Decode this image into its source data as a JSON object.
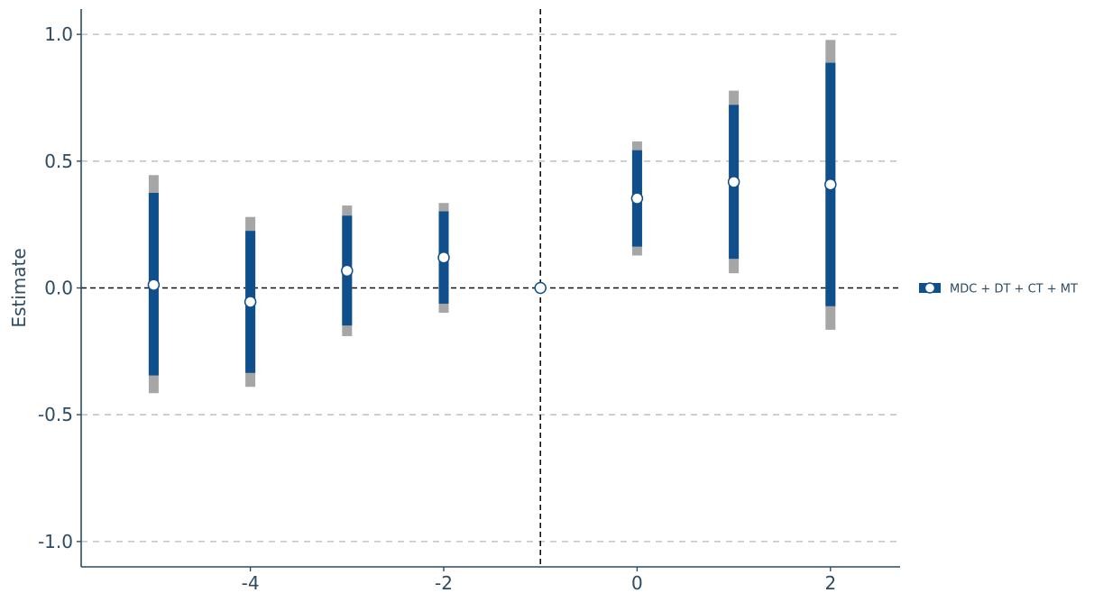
{
  "chart_data": {
    "type": "scatter",
    "title": "",
    "xlabel": "",
    "ylabel": "Estimate",
    "xlim": [
      -5.75,
      2.72
    ],
    "ylim": [
      -1.1,
      1.1
    ],
    "x_ticks": [
      -4,
      -2,
      0,
      2
    ],
    "x_tick_labels": [
      "-4",
      "-2",
      "0",
      "2"
    ],
    "y_ticks": [
      -1.0,
      -0.5,
      0.0,
      0.5,
      1.0
    ],
    "y_tick_labels": [
      "-1.0",
      "-0.5",
      "0.0",
      "0.5",
      "1.0"
    ],
    "grid": "horizontal dashed",
    "reference_lines": {
      "y": 0,
      "x": -1
    },
    "legend_position": "right",
    "series": [
      {
        "name": "MDC + DT + CT + MT",
        "color": "#0f4f8c",
        "outer_ci_color": "#a6a6a6",
        "points": [
          {
            "x": -5,
            "estimate": 0.012,
            "ci_inner": [
              -0.345,
              0.375
            ],
            "ci_outer": [
              -0.415,
              0.445
            ]
          },
          {
            "x": -4,
            "estimate": -0.055,
            "ci_inner": [
              -0.335,
              0.225
            ],
            "ci_outer": [
              -0.39,
              0.28
            ]
          },
          {
            "x": -3,
            "estimate": 0.068,
            "ci_inner": [
              -0.148,
              0.285
            ],
            "ci_outer": [
              -0.19,
              0.325
            ]
          },
          {
            "x": -2,
            "estimate": 0.12,
            "ci_inner": [
              -0.062,
              0.302
            ],
            "ci_outer": [
              -0.098,
              0.335
            ]
          },
          {
            "x": -1,
            "estimate": 0.0,
            "ci_inner": [
              0.0,
              0.0
            ],
            "ci_outer": [
              0.0,
              0.0
            ]
          },
          {
            "x": 0,
            "estimate": 0.353,
            "ci_inner": [
              0.163,
              0.543
            ],
            "ci_outer": [
              0.128,
              0.578
            ]
          },
          {
            "x": 1,
            "estimate": 0.418,
            "ci_inner": [
              0.115,
              0.722
            ],
            "ci_outer": [
              0.058,
              0.778
            ]
          },
          {
            "x": 2,
            "estimate": 0.408,
            "ci_inner": [
              -0.072,
              0.888
            ],
            "ci_outer": [
              -0.165,
              0.978
            ]
          }
        ]
      }
    ]
  },
  "legend": {
    "label": "MDC + DT + CT + MT",
    "icon": "point-range-icon"
  }
}
